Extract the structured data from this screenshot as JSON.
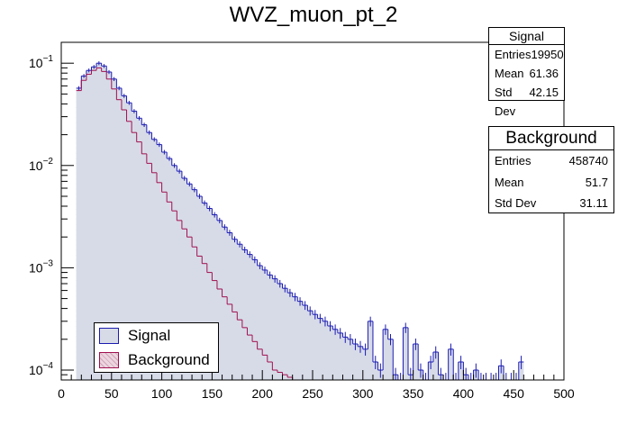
{
  "chart_data": {
    "type": "histogram",
    "title": "WVZ_muon_pt_2",
    "xlabel": "",
    "ylabel": "",
    "xlim": [
      0,
      500
    ],
    "ylim": [
      8e-05,
      0.16
    ],
    "yscale": "log",
    "bin_width": 5,
    "x_ticks": [
      0,
      50,
      100,
      150,
      200,
      250,
      300,
      350,
      400,
      450,
      500
    ],
    "y_ticks": [
      {
        "value": 0.0001,
        "label_base": "10",
        "label_exp": "−4"
      },
      {
        "value": 0.001,
        "label_base": "10",
        "label_exp": "−3"
      },
      {
        "value": 0.01,
        "label_base": "10",
        "label_exp": "−2"
      },
      {
        "value": 0.1,
        "label_base": "10",
        "label_exp": "−1"
      }
    ],
    "series": [
      {
        "name": "Signal",
        "color": "#1b1bb0",
        "fill": "#d7dbe8",
        "bin_low_edges": [
          15,
          20,
          25,
          30,
          35,
          40,
          45,
          50,
          55,
          60,
          65,
          70,
          75,
          80,
          85,
          90,
          95,
          100,
          105,
          110,
          115,
          120,
          125,
          130,
          135,
          140,
          145,
          150,
          155,
          160,
          165,
          170,
          175,
          180,
          185,
          190,
          195,
          200,
          205,
          210,
          215,
          220,
          225,
          230,
          235,
          240,
          245,
          250,
          255,
          260,
          265,
          270,
          275,
          280,
          285,
          290,
          295,
          300,
          305,
          310,
          315,
          320,
          325,
          330,
          335,
          340,
          345,
          350,
          355,
          360,
          365,
          370,
          375,
          380,
          385,
          390,
          395,
          400,
          405,
          410,
          415,
          420,
          425,
          430,
          435,
          440,
          445,
          450,
          455
        ],
        "values": [
          0.057,
          0.075,
          0.085,
          0.092,
          0.1,
          0.094,
          0.082,
          0.07,
          0.057,
          0.048,
          0.041,
          0.034,
          0.029,
          0.025,
          0.021,
          0.018,
          0.016,
          0.0135,
          0.0117,
          0.01,
          0.0088,
          0.0075,
          0.0066,
          0.0058,
          0.005,
          0.0043,
          0.0038,
          0.0033,
          0.0029,
          0.0025,
          0.0022,
          0.0019,
          0.0017,
          0.0015,
          0.00135,
          0.0012,
          0.00105,
          0.00095,
          0.00085,
          0.00078,
          0.0007,
          0.00063,
          0.00057,
          0.00052,
          0.00047,
          0.00043,
          0.00038,
          0.00035,
          0.00032,
          0.0003,
          0.00027,
          0.00025,
          0.00023,
          0.00021,
          0.0002,
          0.00018,
          0.00017,
          0.00016,
          0.0003,
          0.00012,
          0.0001,
          0.00025,
          0.0002,
          9e-05,
          8e-05,
          0.00026,
          9e-05,
          0.00018,
          0.0001,
          8e-05,
          0.00012,
          0.00015,
          9e-05,
          8e-05,
          0.00016,
          8e-05,
          0.00012,
          9e-05,
          8e-05,
          0.0001,
          8e-05,
          8e-05,
          8e-05,
          8e-05,
          0.00011,
          8e-05,
          8e-05,
          8e-05,
          0.00012
        ]
      },
      {
        "name": "Background",
        "color": "#a01050",
        "fill": "#ecd5df",
        "bin_low_edges": [
          15,
          20,
          25,
          30,
          35,
          40,
          45,
          50,
          55,
          60,
          65,
          70,
          75,
          80,
          85,
          90,
          95,
          100,
          105,
          110,
          115,
          120,
          125,
          130,
          135,
          140,
          145,
          150,
          155,
          160,
          165,
          170,
          175,
          180,
          185,
          190,
          195,
          200,
          205,
          210,
          215,
          220,
          225,
          230,
          235,
          240,
          245,
          250,
          255,
          260,
          265,
          270,
          275,
          280,
          285,
          290,
          295,
          300
        ],
        "values": [
          0.054,
          0.068,
          0.078,
          0.085,
          0.09,
          0.083,
          0.07,
          0.056,
          0.044,
          0.035,
          0.027,
          0.021,
          0.017,
          0.013,
          0.0105,
          0.0085,
          0.0068,
          0.0055,
          0.0044,
          0.0036,
          0.0029,
          0.0024,
          0.002,
          0.0016,
          0.0013,
          0.0011,
          0.0009,
          0.00075,
          0.00062,
          0.00052,
          0.00044,
          0.00037,
          0.00031,
          0.00026,
          0.00022,
          0.00019,
          0.00016,
          0.00014,
          0.00012,
          0.0001,
          9.5e-05,
          9e-05,
          8.5e-05,
          8e-05,
          8e-05,
          8e-05,
          8e-05,
          7.5e-05,
          7e-05,
          7e-05,
          7e-05,
          7e-05,
          7e-05,
          7e-05,
          7e-05,
          7e-05,
          7e-05,
          7e-05
        ]
      }
    ],
    "legend": {
      "position": "bottom-left",
      "entries": [
        "Signal",
        "Background"
      ]
    }
  },
  "stats": {
    "signal": {
      "title": "Signal",
      "rows": [
        {
          "label": "Entries",
          "value": "19950"
        },
        {
          "label": "Mean",
          "value": "61.36"
        },
        {
          "label": "Std Dev",
          "value": "42.15"
        }
      ]
    },
    "background": {
      "title": "Background",
      "rows": [
        {
          "label": "Entries",
          "value": "458740"
        },
        {
          "label": "Mean",
          "value": "51.7"
        },
        {
          "label": "Std Dev",
          "value": "31.11"
        }
      ]
    }
  }
}
